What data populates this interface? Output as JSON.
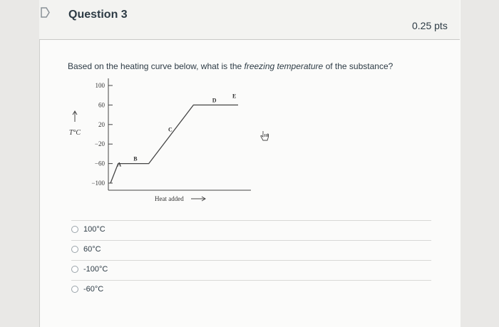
{
  "question": {
    "title": "Question 3",
    "points": "0.25 pts",
    "prompt_start": "Based on the heating curve below, what is the ",
    "prompt_emphasis": "freezing temperature",
    "prompt_end": " of the substance?"
  },
  "chart_data": {
    "type": "line",
    "title": "",
    "xlabel": "Heat added",
    "ylabel": "T°C",
    "y_ticks": [
      "100",
      "60",
      "20",
      "−20",
      "−60",
      "−100"
    ],
    "ylim": [
      -100,
      100
    ],
    "point_labels": [
      "A",
      "B",
      "C",
      "D",
      "E"
    ],
    "series": [
      {
        "x": [
          0,
          0.06,
          0.3,
          0.65,
          1.0
        ],
        "y": [
          -100,
          -60,
          -60,
          60,
          60
        ]
      }
    ]
  },
  "answers": [
    {
      "label": "100°C"
    },
    {
      "label": "60°C"
    },
    {
      "label": "-100°C"
    },
    {
      "label": "-60°C"
    }
  ],
  "icons": {
    "flag": "bookmark-flag-icon",
    "cursor": "hand-pointer-icon"
  }
}
